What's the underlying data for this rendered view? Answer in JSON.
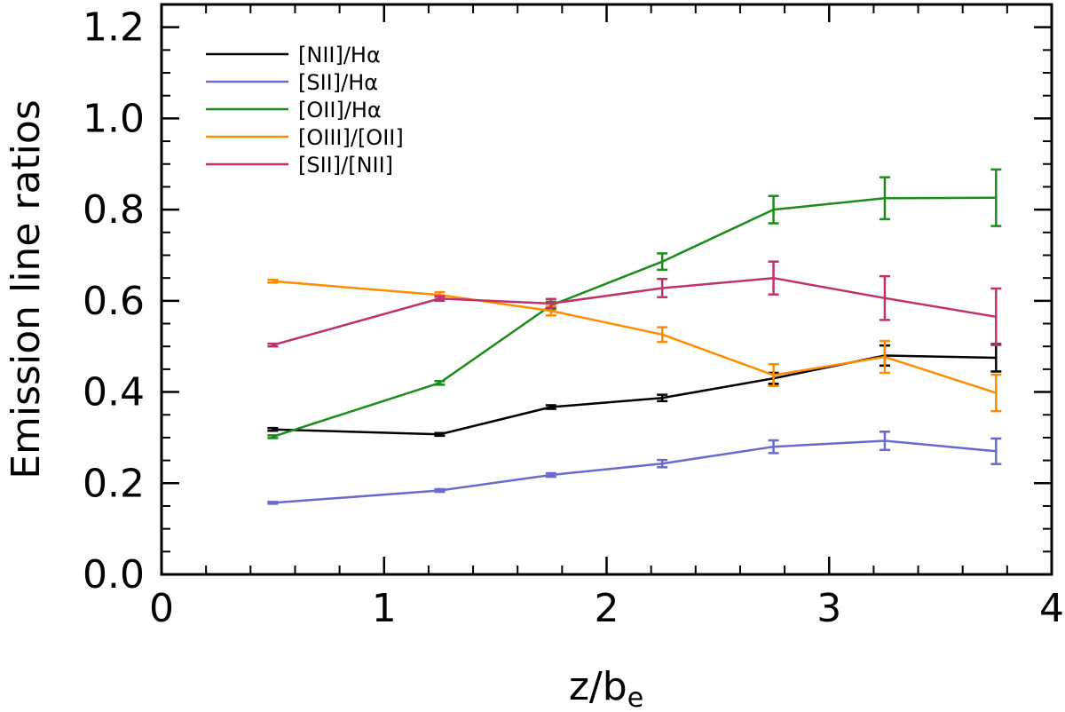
{
  "chart_data": {
    "type": "line",
    "title": "",
    "xlabel": "z/b",
    "xlabel_sub": "e",
    "ylabel": "Emission line ratios",
    "xlim": [
      0,
      4
    ],
    "ylim": [
      0,
      1.25
    ],
    "x_ticks": [
      0,
      1,
      2,
      3,
      4
    ],
    "x_tick_labels": [
      "0",
      "1",
      "2",
      "3",
      "4"
    ],
    "y_ticks": [
      0.0,
      0.2,
      0.4,
      0.6,
      0.8,
      1.0,
      1.2
    ],
    "y_tick_labels": [
      "0.0",
      "0.2",
      "0.4",
      "0.6",
      "0.8",
      "1.0",
      "1.2"
    ],
    "x_minor_step": 0.2,
    "y_minor_step": 0.05,
    "grid": false,
    "legend_position": "top-left",
    "x": [
      0.5,
      1.25,
      1.75,
      2.25,
      2.75,
      3.25,
      3.75
    ],
    "series": [
      {
        "name": "[NII]/Hα",
        "color": "#000000",
        "values": [
          0.318,
          0.307,
          0.367,
          0.387,
          0.43,
          0.48,
          0.475
        ],
        "errors": [
          0.003,
          0.003,
          0.004,
          0.007,
          0.012,
          0.022,
          0.03
        ]
      },
      {
        "name": "[SII]/Hα",
        "color": "#6a6acd",
        "values": [
          0.157,
          0.184,
          0.218,
          0.243,
          0.28,
          0.293,
          0.27
        ],
        "errors": [
          0.002,
          0.003,
          0.004,
          0.008,
          0.014,
          0.02,
          0.028
        ]
      },
      {
        "name": "[OII]/Hα",
        "color": "#1a8c1a",
        "values": [
          0.302,
          0.42,
          0.59,
          0.686,
          0.8,
          0.825,
          0.826
        ],
        "errors": [
          0.003,
          0.004,
          0.008,
          0.018,
          0.03,
          0.046,
          0.062
        ]
      },
      {
        "name": "[OIII]/[OII]",
        "color": "#ff8c00",
        "values": [
          0.643,
          0.613,
          0.578,
          0.526,
          0.437,
          0.477,
          0.398
        ],
        "errors": [
          0.003,
          0.006,
          0.01,
          0.016,
          0.024,
          0.035,
          0.04
        ]
      },
      {
        "name": "[SII]/[NII]",
        "color": "#c0306e",
        "values": [
          0.503,
          0.605,
          0.594,
          0.628,
          0.65,
          0.606,
          0.565
        ],
        "errors": [
          0.003,
          0.005,
          0.01,
          0.02,
          0.036,
          0.048,
          0.062
        ]
      }
    ]
  }
}
